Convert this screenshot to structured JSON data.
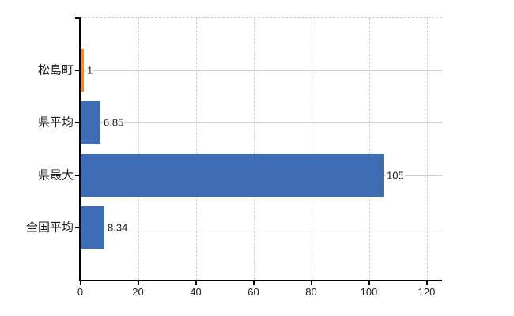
{
  "chart_data": {
    "type": "bar",
    "orientation": "horizontal",
    "title": "",
    "xlabel": "",
    "ylabel": "",
    "categories": [
      "松島町",
      "県平均",
      "県最大",
      "全国平均"
    ],
    "values": [
      1,
      6.85,
      105,
      8.34
    ],
    "value_labels": [
      "1",
      "6.85",
      "105",
      "8.34"
    ],
    "x_ticks": [
      "0",
      "20",
      "40",
      "60",
      "80",
      "100",
      "120"
    ],
    "x_tick_values": [
      0,
      20,
      40,
      60,
      80,
      100,
      120
    ],
    "xlim": [
      0,
      125.5
    ],
    "grid": "on",
    "legend": "none",
    "bar_colors": [
      "#f2882e",
      "#3d6db5",
      "#3d6db5",
      "#3d6db5"
    ]
  },
  "colors": {
    "bar_orange": "#f2882e",
    "bar_blue": "#3d6db5",
    "axis": "#000000",
    "grid_horizontal": "#ccd3cc",
    "grid_vertical": "#cdd0cd",
    "top_border": "#c8c8c8",
    "background": "#ffffff",
    "text": "#1a1a1a"
  }
}
